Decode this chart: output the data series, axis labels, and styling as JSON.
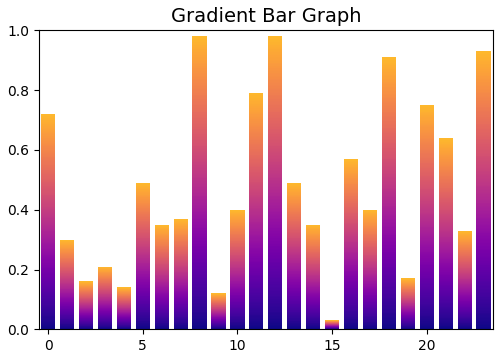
{
  "title": "Gradient Bar Graph",
  "values": [
    0.72,
    0.3,
    0.16,
    0.21,
    0.14,
    0.49,
    0.35,
    0.37,
    0.98,
    0.12,
    0.4,
    0.79,
    0.98,
    0.49,
    0.35,
    0.03,
    0.57,
    0.4,
    0.91,
    0.17,
    0.75,
    0.64,
    0.33,
    0.93
  ],
  "xlim": [
    -0.5,
    23.5
  ],
  "ylim": [
    0.0,
    1.0
  ],
  "cmap": "plasma",
  "cmap_min": 0.0,
  "cmap_max": 0.85,
  "bar_width": 0.75,
  "n_gradient_steps": 200,
  "title_fontsize": 14,
  "background_color": "#ffffff",
  "xticks": [
    0,
    5,
    10,
    15,
    20
  ],
  "xticklabels": [
    "0",
    "5",
    "10",
    "15",
    "20"
  ],
  "yticks": [
    0.0,
    0.2,
    0.4,
    0.6,
    0.8,
    1.0
  ],
  "yticklabels": [
    "0.0",
    "0.2",
    "0.4",
    "0.6",
    "0.8",
    "1.0"
  ]
}
